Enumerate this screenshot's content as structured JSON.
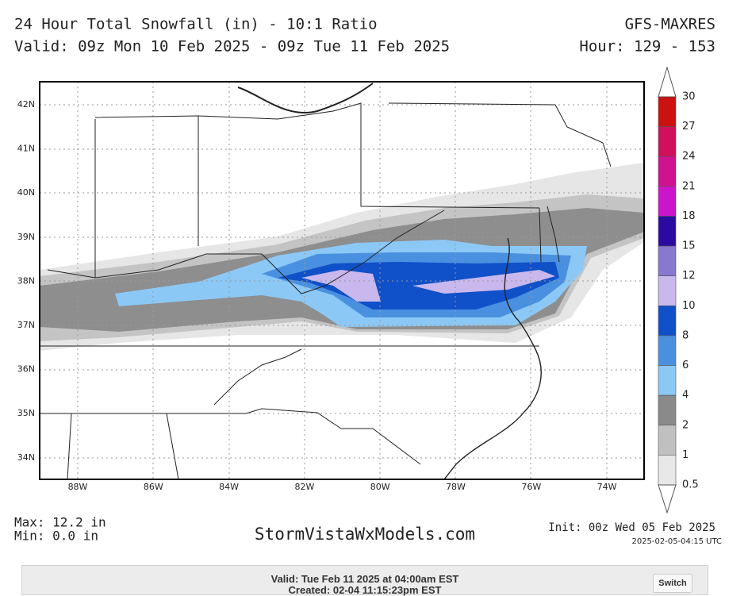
{
  "header": {
    "title": "24 Hour Total Snowfall (in) - 10:1 Ratio",
    "valid": "Valid: 09z Mon 10 Feb 2025 - 09z Tue 11 Feb 2025",
    "model": "GFS-MAXRES",
    "hour": "Hour: 129 - 153"
  },
  "map": {
    "lat_labels": [
      "42N",
      "41N",
      "40N",
      "39N",
      "38N",
      "37N",
      "36N",
      "35N",
      "34N"
    ],
    "lon_labels": [
      "88W",
      "86W",
      "84W",
      "82W",
      "80W",
      "78W",
      "76W",
      "74W"
    ]
  },
  "colorbar": {
    "labels": [
      "30",
      "27",
      "24",
      "21",
      "18",
      "15",
      "12",
      "10",
      "8",
      "6",
      "4",
      "2",
      "1",
      "0.5"
    ],
    "colors": [
      "#cc1111",
      "#d0105a",
      "#cf1290",
      "#cc14cc",
      "#2a0aa0",
      "#8878d0",
      "#c8b8ee",
      "#1050c8",
      "#4a90e0",
      "#8cc8f5",
      "#8a8a8a",
      "#c0c0c0",
      "#e8e8e8"
    ]
  },
  "footer": {
    "max": "Max: 12.2 in",
    "min": "Min: 0.0 in",
    "site": "StormVistaWxModels.com",
    "init": "Init: 00z Wed 05 Feb 2025",
    "stamp": "2025-02-05-04:15 UTC"
  },
  "panel": {
    "valid": "Valid: Tue Feb 11 2025 at 04:00am EST",
    "created": "Created: 02-04 11:15:23pm EST",
    "button": "Switch"
  }
}
